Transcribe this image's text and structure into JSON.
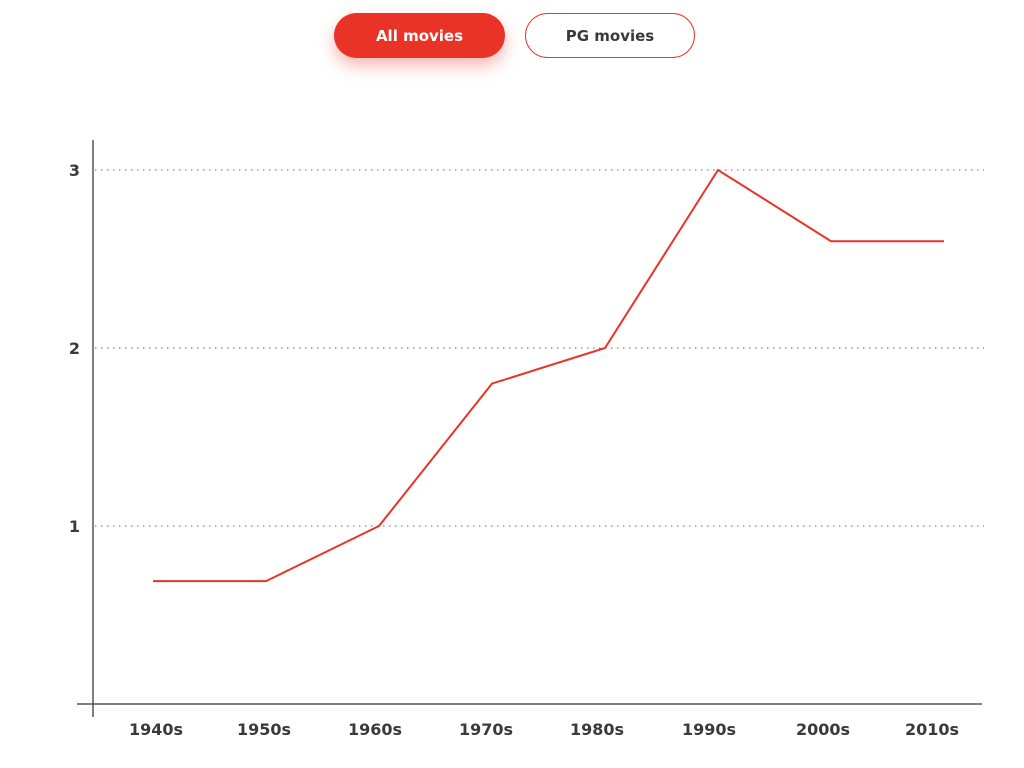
{
  "toggle": {
    "all_label": "All movies",
    "pg_label": "PG movies",
    "active": "All movies"
  },
  "colors": {
    "accent": "#ea3327",
    "axis": "#555555",
    "text": "#3a3a3a"
  },
  "chart_data": {
    "type": "line",
    "categories": [
      "1940s",
      "1950s",
      "1960s",
      "1970s",
      "1980s",
      "1990s",
      "2000s",
      "2010s"
    ],
    "series": [
      {
        "values": [
          0.69,
          0.69,
          1.0,
          1.8,
          2.0,
          3.0,
          2.6,
          2.6
        ],
        "color": "#ea3327"
      }
    ],
    "title": "",
    "xlabel": "",
    "ylabel": "",
    "ylim": [
      0,
      3.15
    ],
    "yticks": [
      "1",
      "2",
      "3"
    ],
    "grid": "horizontal dotted"
  }
}
